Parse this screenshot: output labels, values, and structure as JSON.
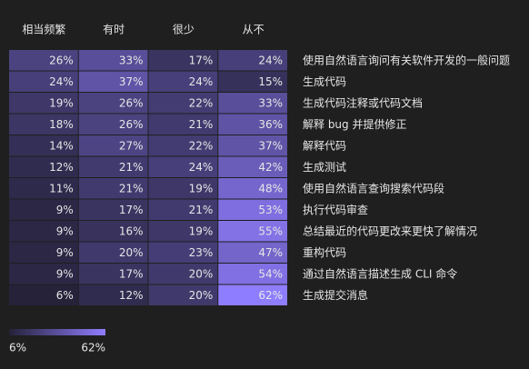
{
  "chart_data": {
    "type": "heatmap",
    "categories": [
      "使用自然语言询问有关软件开发的一般问题",
      "生成代码",
      "生成代码注释或代码文档",
      "解释 bug 并提供修正",
      "解释代码",
      "生成测试",
      "使用自然语言查询搜索代码段",
      "执行代码审查",
      "总结最近的代码更改来更快了解情况",
      "重构代码",
      "通过自然语言描述生成 CLI 命令",
      "生成提交消息"
    ],
    "series": [
      {
        "name": "相当频繁",
        "values": [
          26,
          24,
          19,
          18,
          14,
          12,
          11,
          9,
          9,
          9,
          9,
          6
        ],
        "value_labels": [
          "26%",
          "24%",
          "19%",
          "18%",
          "14%",
          "12%",
          "11%",
          "9%",
          "9%",
          "9%",
          "9%",
          "6%"
        ]
      },
      {
        "name": "有时",
        "values": [
          33,
          37,
          26,
          26,
          27,
          21,
          21,
          17,
          16,
          20,
          17,
          12
        ],
        "value_labels": [
          "33%",
          "37%",
          "26%",
          "26%",
          "27%",
          "21%",
          "21%",
          "17%",
          "16%",
          "20%",
          "17%",
          "12%"
        ]
      },
      {
        "name": "很少",
        "values": [
          17,
          24,
          22,
          21,
          22,
          24,
          19,
          21,
          19,
          23,
          20,
          20
        ],
        "value_labels": [
          "17%",
          "24%",
          "22%",
          "21%",
          "22%",
          "24%",
          "19%",
          "21%",
          "19%",
          "23%",
          "20%",
          "20%"
        ]
      },
      {
        "name": "从不",
        "values": [
          24,
          15,
          33,
          36,
          37,
          42,
          48,
          53,
          55,
          47,
          54,
          62
        ],
        "value_labels": [
          "24%",
          "15%",
          "33%",
          "36%",
          "37%",
          "42%",
          "48%",
          "53%",
          "55%",
          "47%",
          "54%",
          "62%"
        ]
      }
    ],
    "color_scale": [
      "#25223a",
      "#8f7dff"
    ],
    "cticks": [
      {
        "value": 6,
        "label": "6%"
      },
      {
        "value": 62,
        "label": "62%"
      }
    ]
  }
}
